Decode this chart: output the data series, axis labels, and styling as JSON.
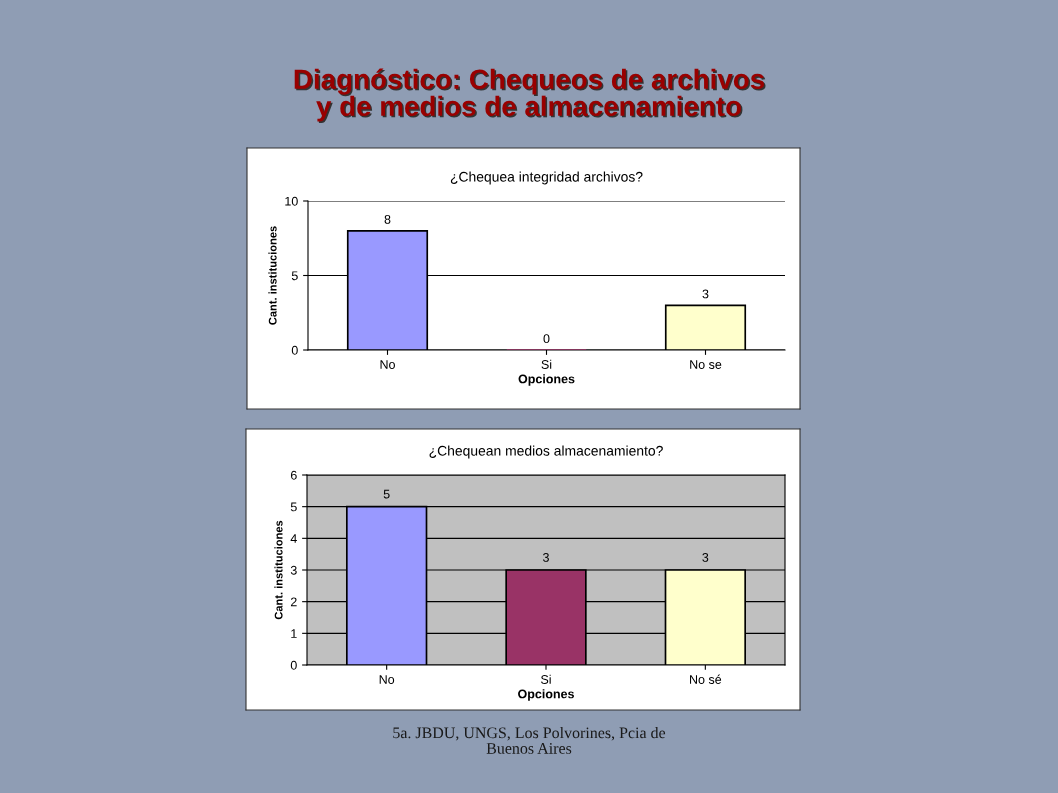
{
  "chart_data": [
    {
      "type": "other",
      "title": "Diagnóstico: Chequeos de archivos\ny de medios de almacenamiento",
      "annotations": [
        "5a. JBDU, UNGS, Los Polvorines, Pcia de\nBuenos Aires"
      ]
    },
    {
      "type": "bar",
      "title": "¿Chequea integridad archivos?",
      "xlabel": "Opciones",
      "ylabel": "Cant. instituciones",
      "categories": [
        "No",
        "Si",
        "No se"
      ],
      "values": [
        8,
        0,
        3
      ],
      "colors": [
        "#9999ff",
        "#993366",
        "#ffffcc"
      ],
      "ylim": [
        0,
        10
      ],
      "yticks": [
        0,
        5,
        10
      ],
      "grid": "y",
      "data_labels": true
    },
    {
      "type": "bar",
      "title": "¿Chequean medios almacenamiento?",
      "xlabel": "Opciones",
      "ylabel": "Cant. instituciones",
      "categories": [
        "No",
        "Si",
        "No sé"
      ],
      "values": [
        5,
        3,
        3
      ],
      "colors": [
        "#9999ff",
        "#993366",
        "#ffffcc"
      ],
      "ylim": [
        0,
        6
      ],
      "yticks": [
        0,
        1,
        2,
        3,
        4,
        5,
        6
      ],
      "grid": "y",
      "data_labels": true
    }
  ]
}
